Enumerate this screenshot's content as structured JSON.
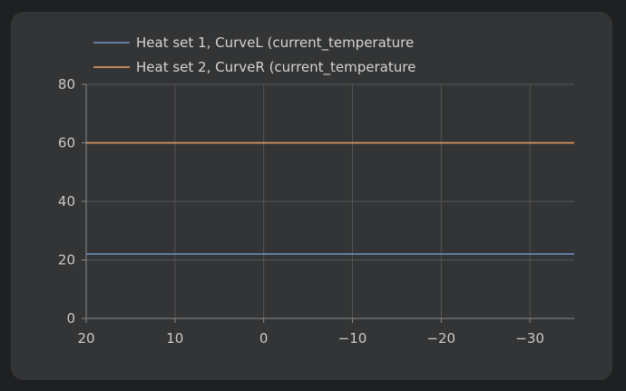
{
  "chart_data": {
    "type": "line",
    "title": "",
    "xlabel": "",
    "ylabel": "",
    "xlim": [
      20,
      -35
    ],
    "ylim": [
      0,
      80
    ],
    "x_ticks": [
      20,
      10,
      0,
      -10,
      -20,
      -30
    ],
    "x_tick_labels": [
      "20",
      "10",
      "0",
      "−10",
      "−20",
      "−30"
    ],
    "y_ticks": [
      0,
      20,
      40,
      60,
      80
    ],
    "y_tick_labels": [
      "0",
      "20",
      "40",
      "60",
      "80"
    ],
    "grid": true,
    "legend_position": "top-left",
    "series": [
      {
        "name": "Heat set 1, CurveL (current_temperature",
        "color": "#6f93c9",
        "x": [
          20,
          -35
        ],
        "y": [
          22,
          22
        ]
      },
      {
        "name": "Heat set 2, CurveR (current_temperature",
        "color": "#f0a060",
        "x": [
          20,
          -35
        ],
        "y": [
          60,
          60
        ]
      }
    ]
  },
  "colors": {
    "card_bg": "#333435",
    "page_bg": "#1f2021",
    "grid": "#555657",
    "axis": "#8a8a8a"
  }
}
